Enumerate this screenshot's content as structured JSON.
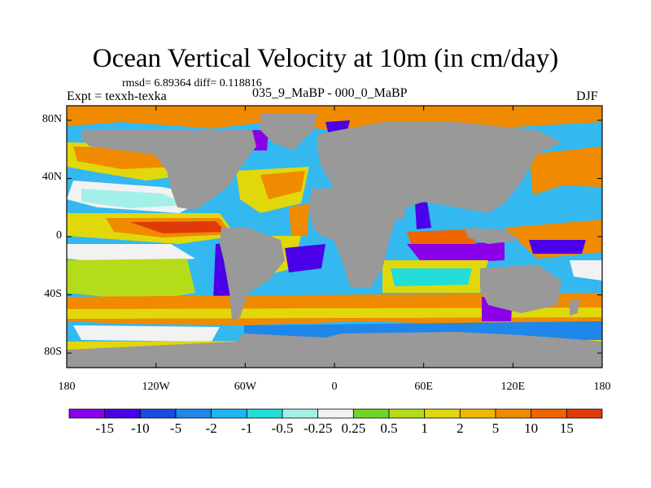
{
  "title": "Ocean Vertical Velocity at 10m (in cm/day)",
  "stats": "rmsd= 6.89364 diff= 0.118816",
  "expt": "Expt = texxh-texka",
  "subtitle": "035_9_MaBP - 000_0_MaBP",
  "season": "DJF",
  "map": {
    "lon_range": [
      -180,
      180
    ],
    "lat_range": [
      -90,
      90
    ],
    "lat_ticks": [
      {
        "value": 80,
        "label": "80N"
      },
      {
        "value": 40,
        "label": "40N"
      },
      {
        "value": 0,
        "label": "0"
      },
      {
        "value": -40,
        "label": "40S"
      },
      {
        "value": -80,
        "label": "80S"
      }
    ],
    "lon_ticks": [
      {
        "value": -180,
        "label": "180"
      },
      {
        "value": -120,
        "label": "120W"
      },
      {
        "value": -60,
        "label": "60W"
      },
      {
        "value": 0,
        "label": "0"
      },
      {
        "value": 60,
        "label": "60E"
      },
      {
        "value": 120,
        "label": "120E"
      },
      {
        "value": 180,
        "label": "180"
      }
    ],
    "land_color": "#999999",
    "ocean_base_color": "#33b8f0"
  },
  "colorbar": {
    "colors": [
      "#8a00e8",
      "#4a00e8",
      "#1a4cdf",
      "#1f86ea",
      "#1fb6f2",
      "#22ddd8",
      "#a3f0e8",
      "#f2f2f2",
      "#6fd629",
      "#b5dc18",
      "#e0d80a",
      "#f2b800",
      "#f08a00",
      "#f06400",
      "#e03a0a"
    ],
    "labels": [
      "-15",
      "-10",
      "-5",
      "-2",
      "-1",
      "-0.5",
      "-0.25",
      "0.25",
      "0.5",
      "1",
      "2",
      "5",
      "10",
      "15"
    ]
  }
}
